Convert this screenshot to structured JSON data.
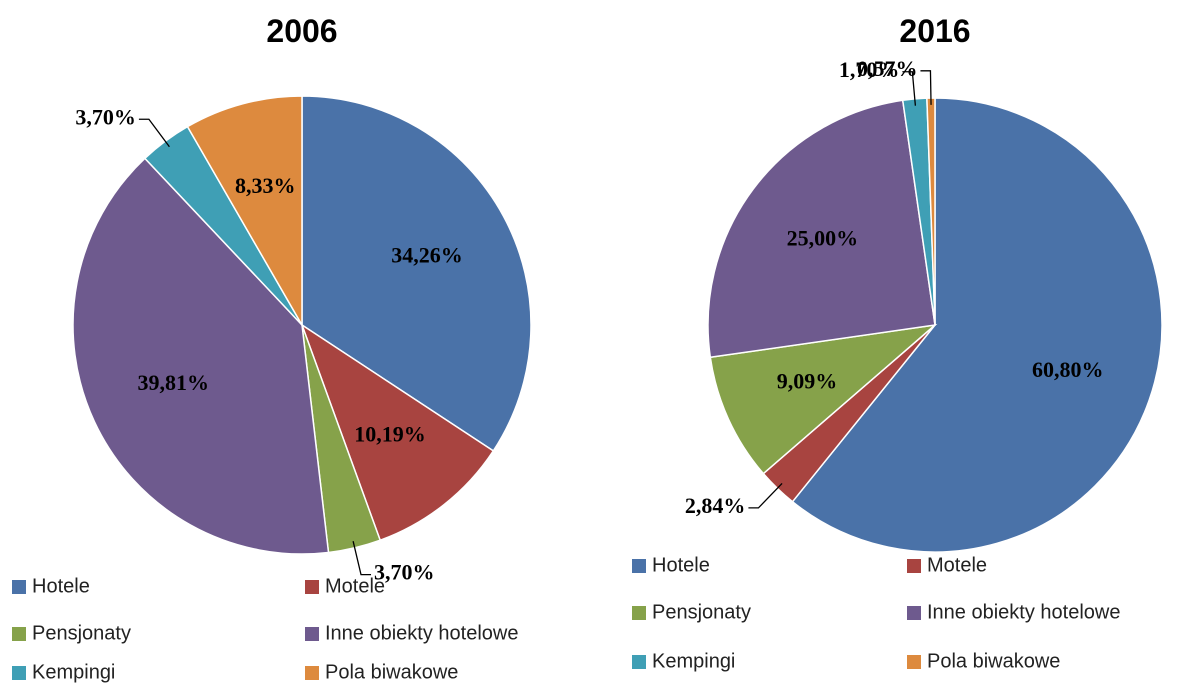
{
  "chart_data": [
    {
      "type": "pie",
      "title": "2006",
      "categories": [
        "Hotele",
        "Motele",
        "Pensjonaty",
        "Inne obiekty hotelowe",
        "Kempingi",
        "Pola biwakowe"
      ],
      "values": [
        34.26,
        10.19,
        3.7,
        39.81,
        3.7,
        8.33
      ],
      "value_labels": [
        "34,26%",
        "10,19%",
        "3,70%",
        "39,81%",
        "3,70%",
        "8,33%"
      ],
      "colors": [
        "#4a72a8",
        "#a84440",
        "#86a24a",
        "#6e5a8e",
        "#3f9fb5",
        "#dd8a3e"
      ],
      "legend": "bottom"
    },
    {
      "type": "pie",
      "title": "2016",
      "categories": [
        "Hotele",
        "Motele",
        "Pensjonaty",
        "Inne obiekty hotelowe",
        "Kempingi",
        "Pola biwakowe"
      ],
      "values": [
        60.8,
        2.84,
        9.09,
        25.0,
        1.7,
        0.57
      ],
      "value_labels": [
        "60,80%",
        "2,84%",
        "9,09%",
        "25,00%",
        "1,70%",
        "0,57%"
      ],
      "colors": [
        "#4a72a8",
        "#a84440",
        "#86a24a",
        "#6e5a8e",
        "#3f9fb5",
        "#dd8a3e"
      ],
      "legend": "bottom"
    }
  ]
}
